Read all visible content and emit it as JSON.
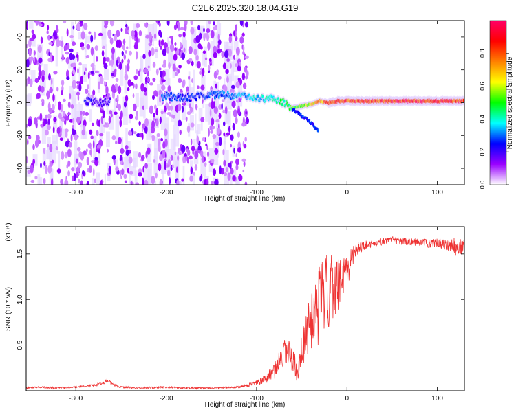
{
  "title": "C2E6.2025.320.18.04.G19",
  "chart_data": [
    {
      "type": "heatmap",
      "title": "C2E6.2025.320.18.04.G19",
      "xlabel": "Height of straight line (km)",
      "ylabel": "Frequency (Hz)",
      "xlim": [
        -355,
        130
      ],
      "ylim": [
        -50,
        50
      ],
      "x_ticks": [
        -300,
        -200,
        -100,
        0,
        100
      ],
      "y_ticks": [
        -40,
        -20,
        0,
        20,
        40
      ],
      "x_tick_labels": [
        "-300",
        "-200",
        "-100",
        "0",
        "100"
      ],
      "y_tick_labels": [
        "-40",
        "-20",
        "0",
        "20",
        "40"
      ],
      "grid": false,
      "colorbar": {
        "label": "Normalized spectral amplitude",
        "range": [
          0,
          1
        ],
        "ticks": [
          0.0,
          0.2,
          0.4,
          0.6,
          0.8
        ],
        "tick_labels": [
          "0.0",
          "0.2",
          "0.4",
          "0.6",
          "0.8"
        ],
        "colors": [
          "#ffffff",
          "#9900ff",
          "#0000ff",
          "#00ffff",
          "#00ff00",
          "#ffff00",
          "#ff8000",
          "#ff0000",
          "#ff0066"
        ]
      },
      "signal_track": {
        "x": [
          -290,
          -270,
          -200,
          -180,
          -160,
          -140,
          -120,
          -100,
          -80,
          -70,
          -60,
          -50,
          -40,
          -30,
          -20,
          -10,
          0,
          20,
          40,
          60,
          80,
          100,
          120,
          130
        ],
        "freq": [
          1,
          0,
          4,
          3,
          4,
          5,
          4,
          3,
          2,
          0,
          -3,
          -2,
          -1,
          1,
          0,
          1,
          1,
          1,
          1,
          1,
          1,
          1,
          1,
          1
        ],
        "amplitude": [
          0.25,
          0.2,
          0.3,
          0.28,
          0.3,
          0.32,
          0.35,
          0.4,
          0.45,
          0.5,
          0.55,
          0.6,
          0.7,
          0.8,
          0.85,
          0.9,
          0.95,
          0.97,
          0.98,
          0.98,
          0.97,
          0.98,
          0.97,
          0.96
        ],
        "noise_edge_x": -120,
        "lower_branch_x": [
          -60,
          -50,
          -40,
          -32
        ],
        "lower_branch_freq": [
          -4,
          -8,
          -12,
          -17
        ]
      }
    },
    {
      "type": "line",
      "xlabel": "Height of straight line (km)",
      "ylabel": "SNR (10 * v/v)",
      "y_multiplier": "(x10⁴)",
      "xlim": [
        -355,
        130
      ],
      "ylim": [
        0,
        1.8
      ],
      "x_ticks": [
        -300,
        -200,
        -100,
        0,
        100
      ],
      "y_ticks": [
        0.5,
        1.0,
        1.5
      ],
      "x_tick_labels": [
        "-300",
        "-200",
        "-100",
        "0",
        "100"
      ],
      "y_tick_labels": [
        "0.5",
        "1.0",
        "1.5"
      ],
      "grid": false,
      "series": [
        {
          "color": "#ee3333",
          "x": [
            -355,
            -340,
            -320,
            -300,
            -290,
            -280,
            -270,
            -265,
            -260,
            -250,
            -230,
            -200,
            -180,
            -150,
            -120,
            -110,
            -100,
            -90,
            -80,
            -70,
            -65,
            -60,
            -55,
            -50,
            -45,
            -40,
            -35,
            -30,
            -25,
            -20,
            -15,
            -10,
            -5,
            0,
            5,
            10,
            20,
            30,
            40,
            50,
            60,
            70,
            80,
            90,
            100,
            110,
            120,
            130
          ],
          "y": [
            0.03,
            0.04,
            0.03,
            0.04,
            0.05,
            0.06,
            0.08,
            0.12,
            0.07,
            0.04,
            0.03,
            0.04,
            0.03,
            0.03,
            0.04,
            0.06,
            0.09,
            0.13,
            0.22,
            0.4,
            0.48,
            0.35,
            0.2,
            0.42,
            0.62,
            0.78,
            0.85,
            0.95,
            1.05,
            1.1,
            1.12,
            1.15,
            1.25,
            1.3,
            1.45,
            1.55,
            1.6,
            1.62,
            1.64,
            1.66,
            1.64,
            1.63,
            1.63,
            1.62,
            1.62,
            1.6,
            1.58,
            1.57
          ],
          "noise": [
            0.01,
            0.01,
            0.01,
            0.01,
            0.01,
            0.012,
            0.015,
            0.02,
            0.015,
            0.01,
            0.01,
            0.01,
            0.01,
            0.01,
            0.01,
            0.02,
            0.03,
            0.05,
            0.1,
            0.15,
            0.18,
            0.15,
            0.12,
            0.2,
            0.25,
            0.35,
            0.4,
            0.45,
            0.45,
            0.4,
            0.35,
            0.3,
            0.25,
            0.2,
            0.12,
            0.08,
            0.05,
            0.04,
            0.04,
            0.04,
            0.04,
            0.04,
            0.04,
            0.05,
            0.05,
            0.06,
            0.1,
            0.08
          ]
        }
      ]
    }
  ]
}
